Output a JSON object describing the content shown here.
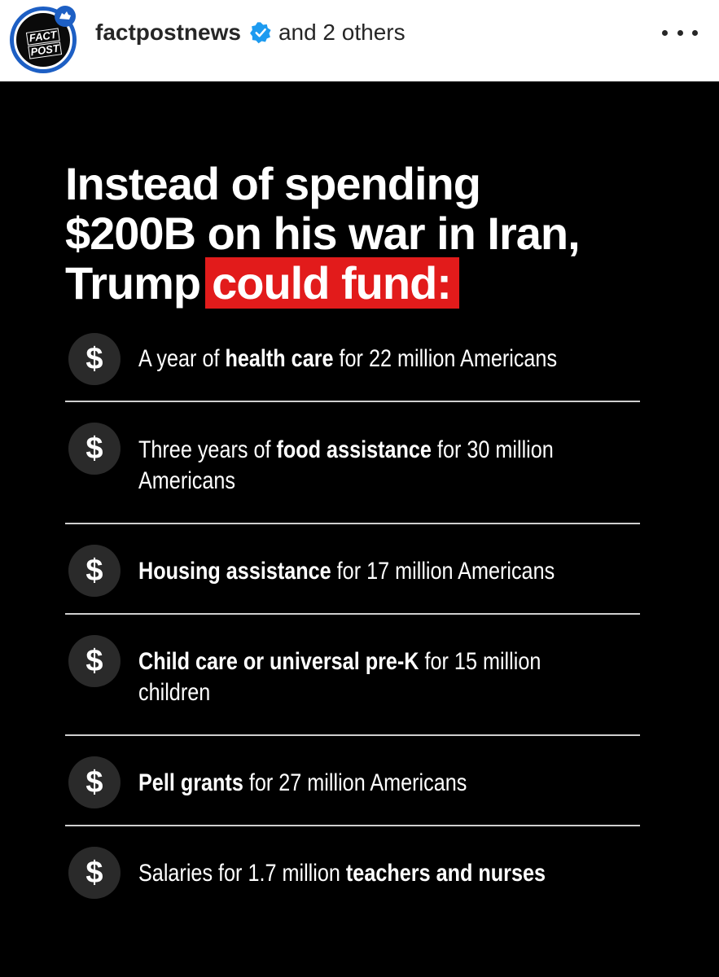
{
  "header": {
    "account_name": "factpostnews",
    "coauthors": "and 2 others",
    "avatar_lines": [
      "FACT",
      "POST"
    ],
    "verified_color": "#1d9bf0"
  },
  "headline": {
    "line1": "Instead of spending",
    "line2": "$200B on his war in Iran,",
    "line3_plain": "Trump",
    "line3_highlight": "could fund:"
  },
  "colors": {
    "highlight": "#e21b1b",
    "background": "#000000"
  },
  "items": [
    {
      "icon": "$",
      "pre": "A year of ",
      "bold": "health care",
      "post": " for 22 million Americans"
    },
    {
      "icon": "$",
      "pre": "Three years of ",
      "bold": "food assistance",
      "post": " for 30 million",
      "post2": "Americans"
    },
    {
      "icon": "$",
      "pre": "",
      "bold": "Housing assistance",
      "post": " for 17 million Americans"
    },
    {
      "icon": "$",
      "pre": "",
      "bold": "Child care or universal pre-K",
      "post": " for 15 million",
      "post2": "children"
    },
    {
      "icon": "$",
      "pre": "",
      "bold": "Pell grants",
      "post": " for 27 million Americans"
    },
    {
      "icon": "$",
      "pre": "Salaries for 1.7 million ",
      "bold": "teachers and nurses",
      "post": ""
    }
  ]
}
